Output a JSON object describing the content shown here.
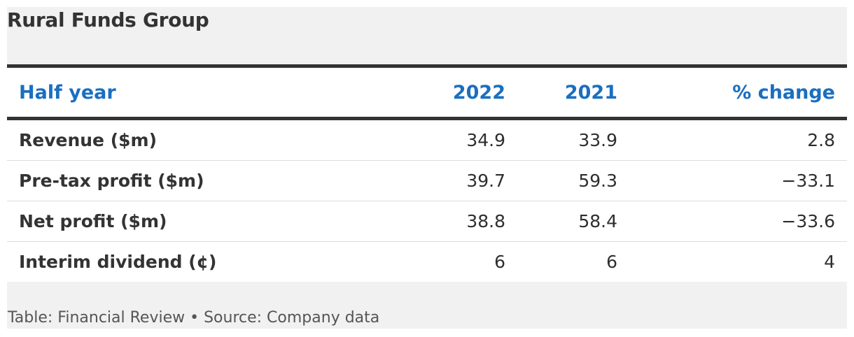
{
  "title": "Rural Funds Group",
  "chart_data": {
    "type": "table",
    "title": "Rural Funds Group",
    "columns": [
      "Half year",
      "2022",
      "2021",
      "% change"
    ],
    "rows": [
      {
        "label": "Revenue ($m)",
        "values": [
          "34.9",
          "33.9",
          "2.8"
        ]
      },
      {
        "label": "Pre-tax profit ($m)",
        "values": [
          "39.7",
          "59.3",
          "−33.1"
        ]
      },
      {
        "label": "Net profit ($m)",
        "values": [
          "38.8",
          "58.4",
          "−33.6"
        ]
      },
      {
        "label": "Interim dividend (¢)",
        "values": [
          "6",
          "6",
          "4"
        ]
      }
    ]
  },
  "footer": "Table: Financial Review • Source: Company data",
  "colors": {
    "header_text": "#1a6fc0",
    "rule": "#333333",
    "card_background": "#f1f1f1"
  }
}
